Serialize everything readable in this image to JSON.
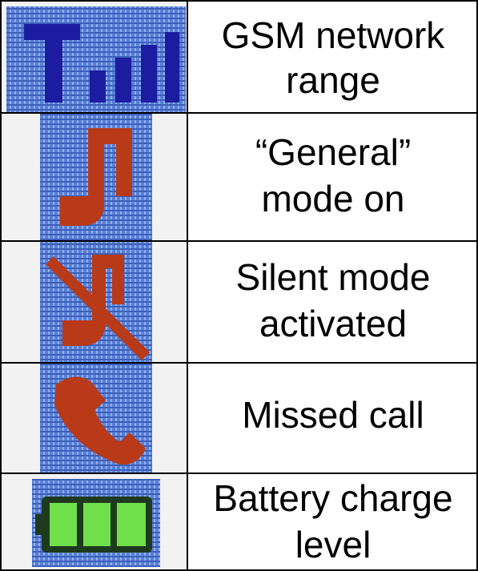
{
  "table": {
    "rows": [
      {
        "lines": [
          "GSM network",
          "range"
        ]
      },
      {
        "lines": [
          "“General”",
          "mode on"
        ]
      },
      {
        "lines": [
          "Silent mode",
          "activated"
        ]
      },
      {
        "lines": [
          "Missed call"
        ]
      },
      {
        "lines": [
          "Battery charge",
          "level"
        ]
      }
    ]
  }
}
